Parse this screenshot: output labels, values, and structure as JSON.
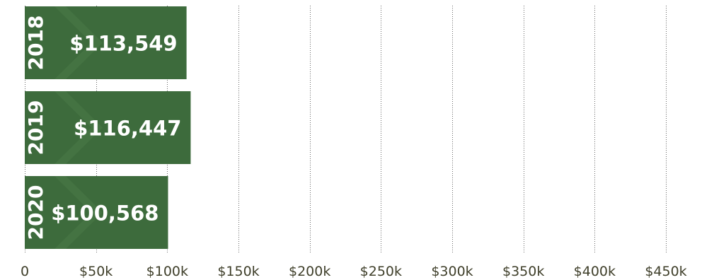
{
  "chart_data": {
    "type": "bar",
    "orientation": "horizontal",
    "categories": [
      "2018",
      "2019",
      "2020"
    ],
    "values": [
      113549,
      116447,
      100568
    ],
    "value_labels": [
      "$113,549",
      "$116,447",
      "$100,568"
    ],
    "x_ticks": [
      0,
      50000,
      100000,
      150000,
      200000,
      250000,
      300000,
      350000,
      400000,
      450000
    ],
    "x_tick_labels": [
      "0",
      "$50k",
      "$100k",
      "$150k",
      "$200k",
      "$250k",
      "$300k",
      "$350k",
      "$400k",
      "$450k"
    ],
    "xlim": [
      0,
      450000
    ],
    "grid": true,
    "title": "",
    "xlabel": "",
    "ylabel": "",
    "colors": {
      "bar": "#3d6b3c",
      "bar_accent": "#4a7a47",
      "text_on_bar": "#ffffff",
      "tick_text": "#3f3f2a",
      "grid": "#666666"
    }
  }
}
